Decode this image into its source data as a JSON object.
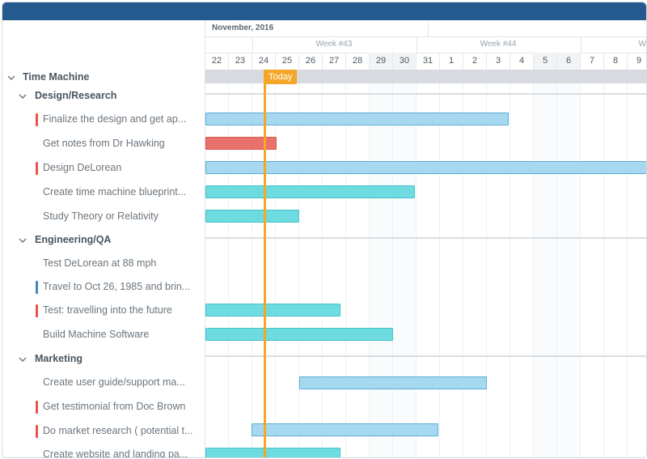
{
  "timeline": {
    "month": "November, 2016",
    "weeks": [
      "Week #43",
      "Week #44",
      "W"
    ],
    "days": [
      "22",
      "23",
      "24",
      "25",
      "26",
      "27",
      "28",
      "29",
      "30",
      "31",
      "1",
      "2",
      "3",
      "4",
      "5",
      "6",
      "7",
      "8",
      "9"
    ],
    "weekend_days": [
      "29",
      "30",
      "5",
      "6"
    ],
    "today_label": "Today"
  },
  "tree": {
    "root": "Time Machine",
    "groups": [
      {
        "label": "Design/Research",
        "tasks": [
          {
            "label": "Finalize the design and get ap...",
            "marker": "red"
          },
          {
            "label": "Get notes from Dr Hawking",
            "marker": "none"
          },
          {
            "label": "Design DeLorean",
            "marker": "red"
          },
          {
            "label": "Create time machine blueprint...",
            "marker": "none"
          },
          {
            "label": "Study Theory or Relativity",
            "marker": "none"
          }
        ]
      },
      {
        "label": "Engineering/QA",
        "tasks": [
          {
            "label": "Test DeLorean at 88 mph",
            "marker": "none"
          },
          {
            "label": "Travel to Oct 26, 1985 and brin...",
            "marker": "blue"
          },
          {
            "label": "Test: travelling into the future",
            "marker": "red"
          },
          {
            "label": "Build Machine Software",
            "marker": "none"
          }
        ]
      },
      {
        "label": "Marketing",
        "tasks": [
          {
            "label": "Create user guide/support ma...",
            "marker": "none"
          },
          {
            "label": "Get testimonial from Doc Brown",
            "marker": "red"
          },
          {
            "label": "Do market research ( potential t...",
            "marker": "red"
          },
          {
            "label": "Create website and landing pa...",
            "marker": "none"
          }
        ]
      }
    ]
  },
  "colors": {
    "header_bar": "#245a8d",
    "today": "#f4a62a",
    "marker_red": "#e5554f",
    "marker_blue": "#3d89b8",
    "bar_blue": "#a6d8ef",
    "bar_cyan": "#6ddbe0",
    "bar_red": "#e8716b"
  },
  "icons": {
    "expand": "chevron-down-icon"
  }
}
